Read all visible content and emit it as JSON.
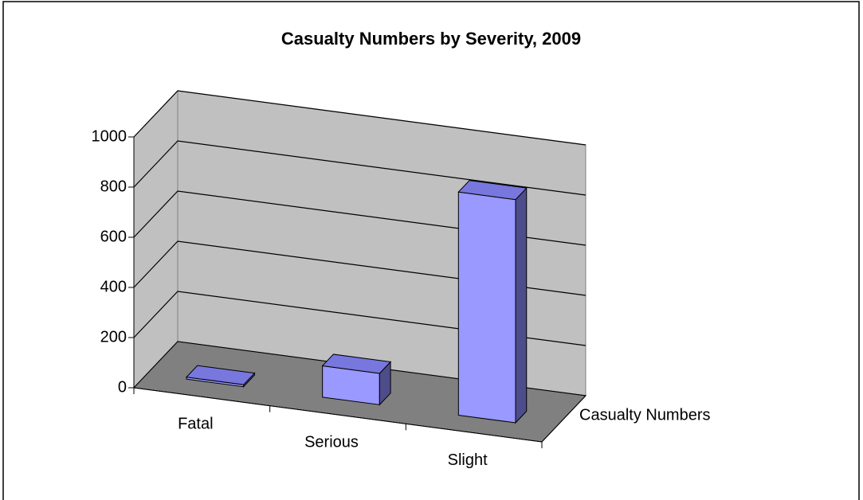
{
  "chart_data": {
    "type": "bar3d",
    "title": "Casualty Numbers by Severity, 2009",
    "categories": [
      "Fatal",
      "Serious",
      "Slight"
    ],
    "series": [
      {
        "name": "Casualty Numbers",
        "color": "#9999ff",
        "values": [
          8,
          125,
          890
        ]
      }
    ],
    "ylim": [
      0,
      1000
    ],
    "yticks": [
      0,
      200,
      400,
      600,
      800,
      1000
    ],
    "grid": true
  }
}
